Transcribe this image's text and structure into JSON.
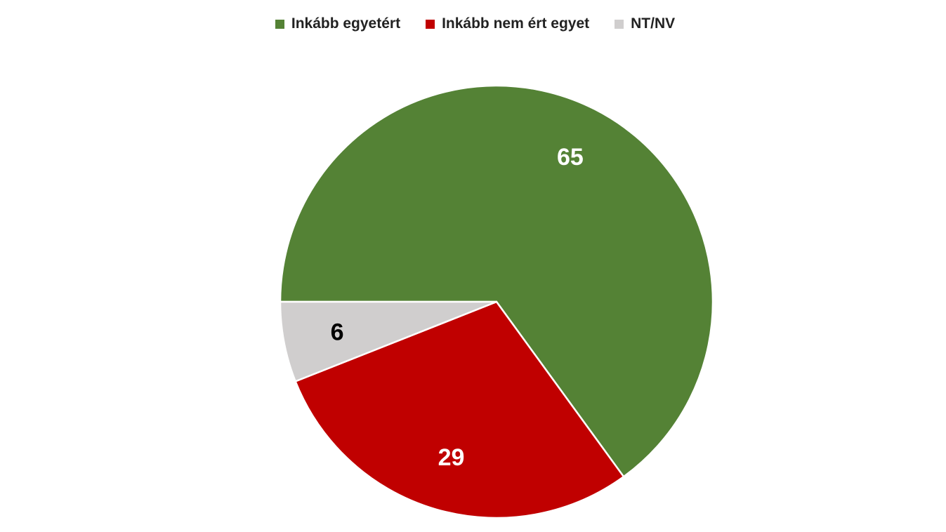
{
  "chart_data": {
    "type": "pie",
    "categories": [
      "Inkább egyetért",
      "Inkább nem ért egyet",
      "NT/NV"
    ],
    "values": [
      65,
      29,
      6
    ],
    "colors": [
      "#548235",
      "#c00000",
      "#d0cece"
    ],
    "label_colors": [
      "#ffffff",
      "#ffffff",
      "#000000"
    ],
    "legend_position": "top"
  }
}
